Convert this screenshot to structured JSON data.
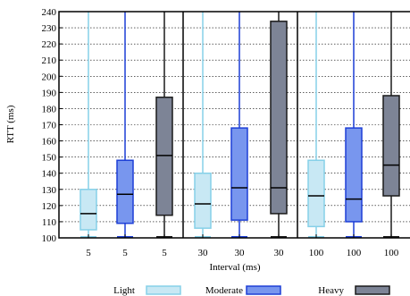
{
  "chart_data": {
    "type": "box",
    "title": "",
    "xlabel": "Interval (ms)",
    "ylabel": "RTT (ms)",
    "ylim": [
      100,
      240
    ],
    "yticks": [
      100,
      110,
      120,
      130,
      140,
      150,
      160,
      170,
      180,
      190,
      200,
      210,
      220,
      230,
      240
    ],
    "grid": "horizontal, dotted",
    "legend_position": "bottom",
    "groups": [
      {
        "interval": "5",
        "boxes": [
          {
            "series": "Light",
            "label": "5",
            "whisker_low": 100,
            "q1": 105,
            "median": 115,
            "q3": 130,
            "whisker_high": 240
          },
          {
            "series": "Moderate",
            "label": "5",
            "whisker_low": 100,
            "q1": 109,
            "median": 127,
            "q3": 148,
            "whisker_high": 240
          },
          {
            "series": "Heavy",
            "label": "5",
            "whisker_low": 100,
            "q1": 114,
            "median": 151,
            "q3": 187,
            "whisker_high": 240
          }
        ]
      },
      {
        "interval": "30",
        "boxes": [
          {
            "series": "Light",
            "label": "30",
            "whisker_low": 100,
            "q1": 106,
            "median": 121,
            "q3": 140,
            "whisker_high": 240
          },
          {
            "series": "Moderate",
            "label": "30",
            "whisker_low": 100,
            "q1": 111,
            "median": 131,
            "q3": 168,
            "whisker_high": 240
          },
          {
            "series": "Heavy",
            "label": "30",
            "whisker_low": 100,
            "q1": 115,
            "median": 131,
            "q3": 234,
            "whisker_high": 240
          }
        ]
      },
      {
        "interval": "100",
        "boxes": [
          {
            "series": "Light",
            "label": "100",
            "whisker_low": 100,
            "q1": 107,
            "median": 126,
            "q3": 148,
            "whisker_high": 240
          },
          {
            "series": "Moderate",
            "label": "100",
            "whisker_low": 100,
            "q1": 110,
            "median": 124,
            "q3": 168,
            "whisker_high": 240
          },
          {
            "series": "Heavy",
            "label": "100",
            "whisker_low": 100,
            "q1": 126,
            "median": 145,
            "q3": 188,
            "whisker_high": 240
          }
        ]
      }
    ],
    "series": [
      {
        "name": "Light",
        "fill": "#c8e8f4",
        "stroke": "#86d0e8",
        "whisker": "#86d0e8"
      },
      {
        "name": "Moderate",
        "fill": "#7896ee",
        "stroke": "#1d3fd6",
        "whisker": "#1d3fd6"
      },
      {
        "name": "Heavy",
        "fill": "#7d8496",
        "stroke": "#1a1a1a",
        "whisker": "#1a1a1a"
      }
    ]
  }
}
